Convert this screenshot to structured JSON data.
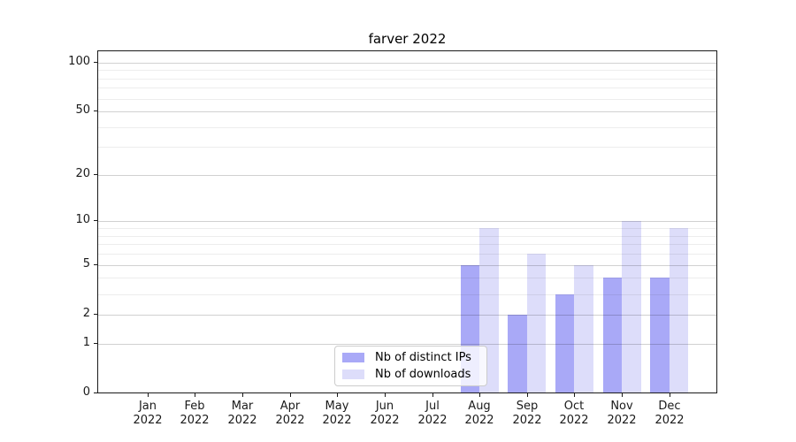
{
  "title": "farver 2022",
  "chart_data": {
    "type": "bar",
    "title": "farver 2022",
    "categories": [
      "Jan 2022",
      "Feb 2022",
      "Mar 2022",
      "Apr 2022",
      "May 2022",
      "Jun 2022",
      "Jul 2022",
      "Aug 2022",
      "Sep 2022",
      "Oct 2022",
      "Nov 2022",
      "Dec 2022"
    ],
    "series": [
      {
        "name": "Nb of distinct IPs",
        "color": "#a9a9f7",
        "values": [
          0,
          0,
          0,
          0,
          0,
          0,
          0,
          5,
          2,
          3,
          4,
          4
        ]
      },
      {
        "name": "Nb of downloads",
        "color": "#ddddfa",
        "values": [
          0,
          0,
          0,
          0,
          0,
          0,
          0,
          9,
          6,
          5,
          10,
          9
        ]
      }
    ],
    "yaxis": {
      "scale": "log10(value+1)",
      "ticks": [
        0,
        1,
        2,
        5,
        10,
        20,
        50,
        100
      ],
      "minor_gridlines": [
        3,
        4,
        6,
        7,
        8,
        9,
        30,
        40,
        60,
        70,
        80,
        90
      ],
      "max": 117,
      "min": 0
    },
    "grid": true,
    "legend_position": "lower-center",
    "background": "#ffffff"
  },
  "legend": {
    "items": [
      {
        "label": "Nb of distinct IPs",
        "color": "#a9a9f7"
      },
      {
        "label": "Nb of downloads",
        "color": "#ddddfa"
      }
    ]
  }
}
